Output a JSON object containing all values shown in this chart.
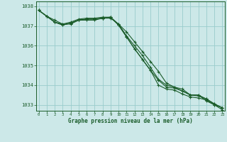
{
  "background_color": "#cce8e8",
  "plot_bg_color": "#cce8e8",
  "grid_color": "#99cccc",
  "line_color": "#1a5c2a",
  "marker_color": "#1a5c2a",
  "xlabel": "Graphe pression niveau de la mer (hPa)",
  "xlabel_color": "#1a5c2a",
  "tick_color": "#1a5c2a",
  "spine_color": "#1a5c2a",
  "ylim": [
    1032.7,
    1038.25
  ],
  "xlim": [
    -0.3,
    23.3
  ],
  "yticks": [
    1033,
    1034,
    1035,
    1036,
    1037,
    1038
  ],
  "xticks": [
    0,
    1,
    2,
    3,
    4,
    5,
    6,
    7,
    8,
    9,
    10,
    11,
    12,
    13,
    14,
    15,
    16,
    17,
    18,
    19,
    20,
    21,
    22,
    23
  ],
  "series": [
    [
      1037.8,
      1037.5,
      1037.3,
      1037.1,
      1037.1,
      1037.3,
      1037.3,
      1037.3,
      1037.4,
      1037.4,
      1037.1,
      1036.7,
      1036.2,
      1035.7,
      1035.2,
      1034.7,
      1034.1,
      1033.9,
      1033.8,
      1033.5,
      1033.5,
      1033.2,
      1033.0,
      1032.85
    ],
    [
      1037.8,
      1037.5,
      1037.2,
      1037.1,
      1037.2,
      1037.35,
      1037.4,
      1037.4,
      1037.45,
      1037.45,
      1037.1,
      1036.5,
      1036.0,
      1035.5,
      1034.9,
      1034.3,
      1034.0,
      1033.9,
      1033.7,
      1033.5,
      1033.5,
      1033.3,
      1033.05,
      1032.85
    ],
    [
      1037.8,
      1037.5,
      1037.2,
      1037.05,
      1037.15,
      1037.3,
      1037.35,
      1037.35,
      1037.4,
      1037.45,
      1037.05,
      1036.45,
      1035.85,
      1035.3,
      1034.75,
      1034.25,
      1033.9,
      1033.85,
      1033.7,
      1033.5,
      1033.45,
      1033.3,
      1033.05,
      1032.85
    ],
    [
      1037.8,
      1037.5,
      1037.2,
      1037.05,
      1037.15,
      1037.3,
      1037.35,
      1037.35,
      1037.4,
      1037.45,
      1037.05,
      1036.45,
      1035.85,
      1035.3,
      1034.75,
      1034.0,
      1033.8,
      1033.75,
      1033.55,
      1033.4,
      1033.35,
      1033.25,
      1033.0,
      1032.75
    ]
  ]
}
